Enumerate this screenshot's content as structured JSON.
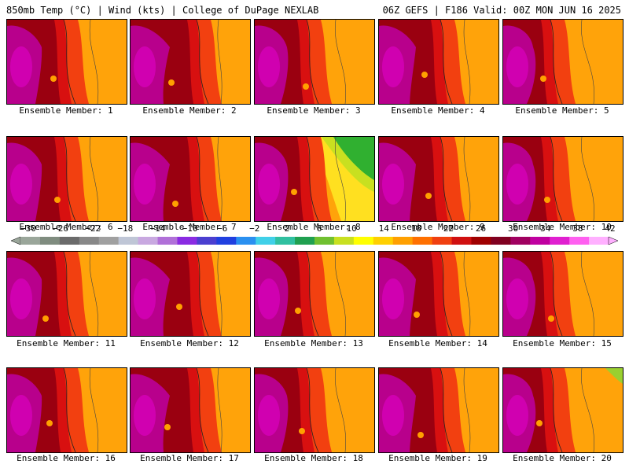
{
  "header": {
    "left": "850mb Temp (°C) | Wind (kts) | College of DuPage NEXLAB",
    "right": "06Z GEFS | F186 Valid: 00Z MON JUN 16 2025"
  },
  "panels": [
    {
      "label": "Ensemble Member: 1",
      "variant": "base"
    },
    {
      "label": "Ensemble Member: 2",
      "variant": "base"
    },
    {
      "label": "Ensemble Member: 3",
      "variant": "base"
    },
    {
      "label": "Ensemble Member: 4",
      "variant": "base"
    },
    {
      "label": "Ensemble Member: 5",
      "variant": "base"
    },
    {
      "label": "Ensemble Member: 6",
      "variant": "base"
    },
    {
      "label": "Ensemble Member: 7",
      "variant": "base"
    },
    {
      "label": "Ensemble Member: 8",
      "variant": "cool"
    },
    {
      "label": "Ensemble Member: 9",
      "variant": "base"
    },
    {
      "label": "Ensemble Member: 10",
      "variant": "base"
    },
    {
      "label": "Ensemble Member: 11",
      "variant": "base"
    },
    {
      "label": "Ensemble Member: 12",
      "variant": "base"
    },
    {
      "label": "Ensemble Member: 13",
      "variant": "base"
    },
    {
      "label": "Ensemble Member: 14",
      "variant": "base"
    },
    {
      "label": "Ensemble Member: 15",
      "variant": "base"
    },
    {
      "label": "Ensemble Member: 16",
      "variant": "base"
    },
    {
      "label": "Ensemble Member: 17",
      "variant": "base"
    },
    {
      "label": "Ensemble Member: 18",
      "variant": "base"
    },
    {
      "label": "Ensemble Member: 19",
      "variant": "base"
    },
    {
      "label": "Ensemble Member: 20",
      "variant": "greencorner"
    }
  ],
  "colorbar": {
    "ticks": [
      "−30",
      "−26",
      "−22",
      "−18",
      "−14",
      "−10",
      "−6",
      "−2",
      "2",
      "6",
      "10",
      "14",
      "18",
      "22",
      "26",
      "30",
      "34",
      "38",
      "42"
    ],
    "colors": [
      "#9aa69a",
      "#7f8c7f",
      "#6b6b6b",
      "#888888",
      "#a0a0a0",
      "#bfc6d6",
      "#c8a8e0",
      "#b070d8",
      "#8a2be2",
      "#4b3fd0",
      "#2040e0",
      "#2a90f0",
      "#40d0e8",
      "#30c0a0",
      "#20a050",
      "#70c030",
      "#c8e020",
      "#ffff00",
      "#ffd000",
      "#ffa000",
      "#ff7000",
      "#f04010",
      "#d01010",
      "#a00000",
      "#800020",
      "#a00060",
      "#c000a0",
      "#e020d0",
      "#ff60f0",
      "#ffb0ff"
    ]
  },
  "palette": {
    "purple": "#b8008c",
    "magenta": "#d000b0",
    "darkred": "#9a0010",
    "red": "#d81010",
    "redorange": "#f24010",
    "orange": "#ff8a00",
    "lightorange": "#ffa30a",
    "yellow": "#ffe020",
    "green": "#30b030"
  }
}
